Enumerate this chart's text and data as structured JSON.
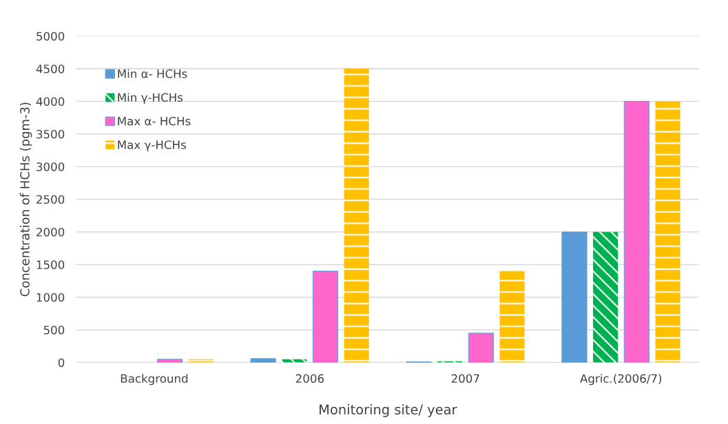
{
  "chart_data": {
    "type": "bar",
    "xlabel": "Monitoring site/ year",
    "ylabel": "Concentration of HCHs (pgm-3)",
    "categories": [
      "Background",
      "2006",
      "2007",
      "Agric.(2006/7)"
    ],
    "series": [
      {
        "name": "Min α- HCHs",
        "color": "#5b9bd5",
        "values": [
          null,
          60,
          10,
          2000
        ]
      },
      {
        "name": "Min γ-HCHs",
        "color": "#00b050",
        "values": [
          null,
          50,
          20,
          2000
        ]
      },
      {
        "name": "Max α- HCHs",
        "color": "#ff66cc",
        "values": [
          50,
          1400,
          450,
          4000
        ]
      },
      {
        "name": "Max γ-HCHs",
        "color": "#ffc000",
        "values": [
          50,
          4500,
          1400,
          4000
        ]
      }
    ],
    "ylim": [
      0,
      5000
    ],
    "yticks": [
      0,
      500,
      1000,
      1500,
      2000,
      2500,
      3000,
      3500,
      4000,
      4500,
      5000
    ],
    "grid": "y",
    "legend": "top left"
  }
}
